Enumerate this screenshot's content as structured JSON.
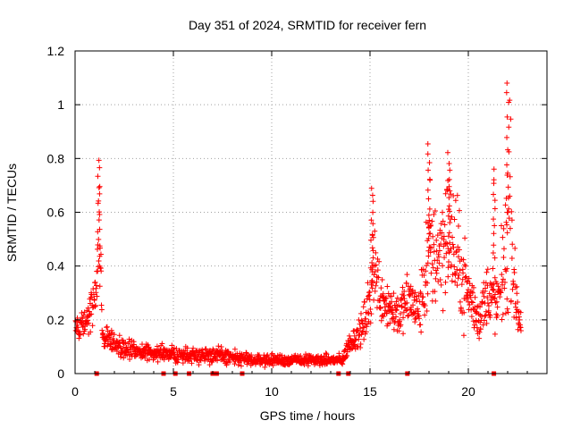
{
  "chart_data": {
    "type": "scatter",
    "title": "Day 351 of 2024, SRMTID for receiver fern",
    "xlabel": "GPS time / hours",
    "ylabel": "SRMTID / TECUs",
    "xlim": [
      0,
      24
    ],
    "ylim": [
      0,
      1.2
    ],
    "xticks": [
      0,
      5,
      10,
      15,
      20
    ],
    "yticks": [
      0,
      0.2,
      0.4,
      0.6,
      0.8,
      1.0,
      1.2
    ],
    "xtick_labels": [
      "0",
      "5",
      "10",
      "15",
      "20"
    ],
    "ytick_labels": [
      "0",
      "0.2",
      "0.4",
      "0.6",
      "0.8",
      "1",
      "1.2"
    ],
    "grid": true,
    "marker": "plus",
    "color": "#ff0000",
    "series_envelope": [
      [
        0.0,
        0.15,
        0.05
      ],
      [
        0.2,
        0.18,
        0.05
      ],
      [
        0.4,
        0.2,
        0.05
      ],
      [
        0.6,
        0.2,
        0.05
      ],
      [
        0.8,
        0.25,
        0.08
      ],
      [
        1.0,
        0.28,
        0.08
      ],
      [
        1.1,
        0.3,
        0.08
      ],
      [
        1.2,
        0.55,
        0.25
      ],
      [
        1.3,
        0.4,
        0.12
      ],
      [
        1.4,
        0.15,
        0.05
      ],
      [
        1.8,
        0.12,
        0.05
      ],
      [
        2.2,
        0.11,
        0.04
      ],
      [
        3.0,
        0.08,
        0.03
      ],
      [
        4.0,
        0.08,
        0.03
      ],
      [
        5.0,
        0.07,
        0.03
      ],
      [
        6.0,
        0.07,
        0.03
      ],
      [
        7.0,
        0.07,
        0.03
      ],
      [
        8.0,
        0.06,
        0.03
      ],
      [
        9.0,
        0.05,
        0.02
      ],
      [
        10.0,
        0.05,
        0.02
      ],
      [
        11.0,
        0.05,
        0.02
      ],
      [
        12.0,
        0.05,
        0.02
      ],
      [
        13.0,
        0.05,
        0.02
      ],
      [
        13.6,
        0.05,
        0.02
      ],
      [
        14.0,
        0.12,
        0.04
      ],
      [
        14.5,
        0.15,
        0.05
      ],
      [
        15.0,
        0.25,
        0.12
      ],
      [
        15.1,
        0.45,
        0.2
      ],
      [
        15.5,
        0.3,
        0.1
      ],
      [
        16.0,
        0.25,
        0.1
      ],
      [
        16.5,
        0.22,
        0.08
      ],
      [
        17.0,
        0.28,
        0.1
      ],
      [
        17.5,
        0.22,
        0.08
      ],
      [
        18.0,
        0.45,
        0.25
      ],
      [
        18.5,
        0.45,
        0.2
      ],
      [
        19.0,
        0.55,
        0.25
      ],
      [
        19.5,
        0.4,
        0.2
      ],
      [
        20.0,
        0.3,
        0.12
      ],
      [
        20.5,
        0.2,
        0.08
      ],
      [
        21.0,
        0.3,
        0.12
      ],
      [
        21.5,
        0.25,
        0.1
      ],
      [
        22.0,
        0.5,
        0.3
      ],
      [
        22.1,
        0.7,
        0.35
      ],
      [
        22.3,
        0.35,
        0.15
      ],
      [
        22.6,
        0.2,
        0.06
      ],
      [
        22.7,
        0.18,
        0.05
      ]
    ],
    "peaks": [
      {
        "x": 1.2,
        "y": 0.8
      },
      {
        "x": 15.1,
        "y": 0.7
      },
      {
        "x": 18.0,
        "y": 0.87
      },
      {
        "x": 19.0,
        "y": 0.83
      },
      {
        "x": 21.3,
        "y": 0.77
      },
      {
        "x": 22.0,
        "y": 1.1
      }
    ],
    "zero_points_x": [
      1.1,
      4.5,
      5.1,
      5.8,
      7.0,
      7.2,
      8.5,
      13.4,
      13.9,
      16.9,
      21.3
    ]
  }
}
